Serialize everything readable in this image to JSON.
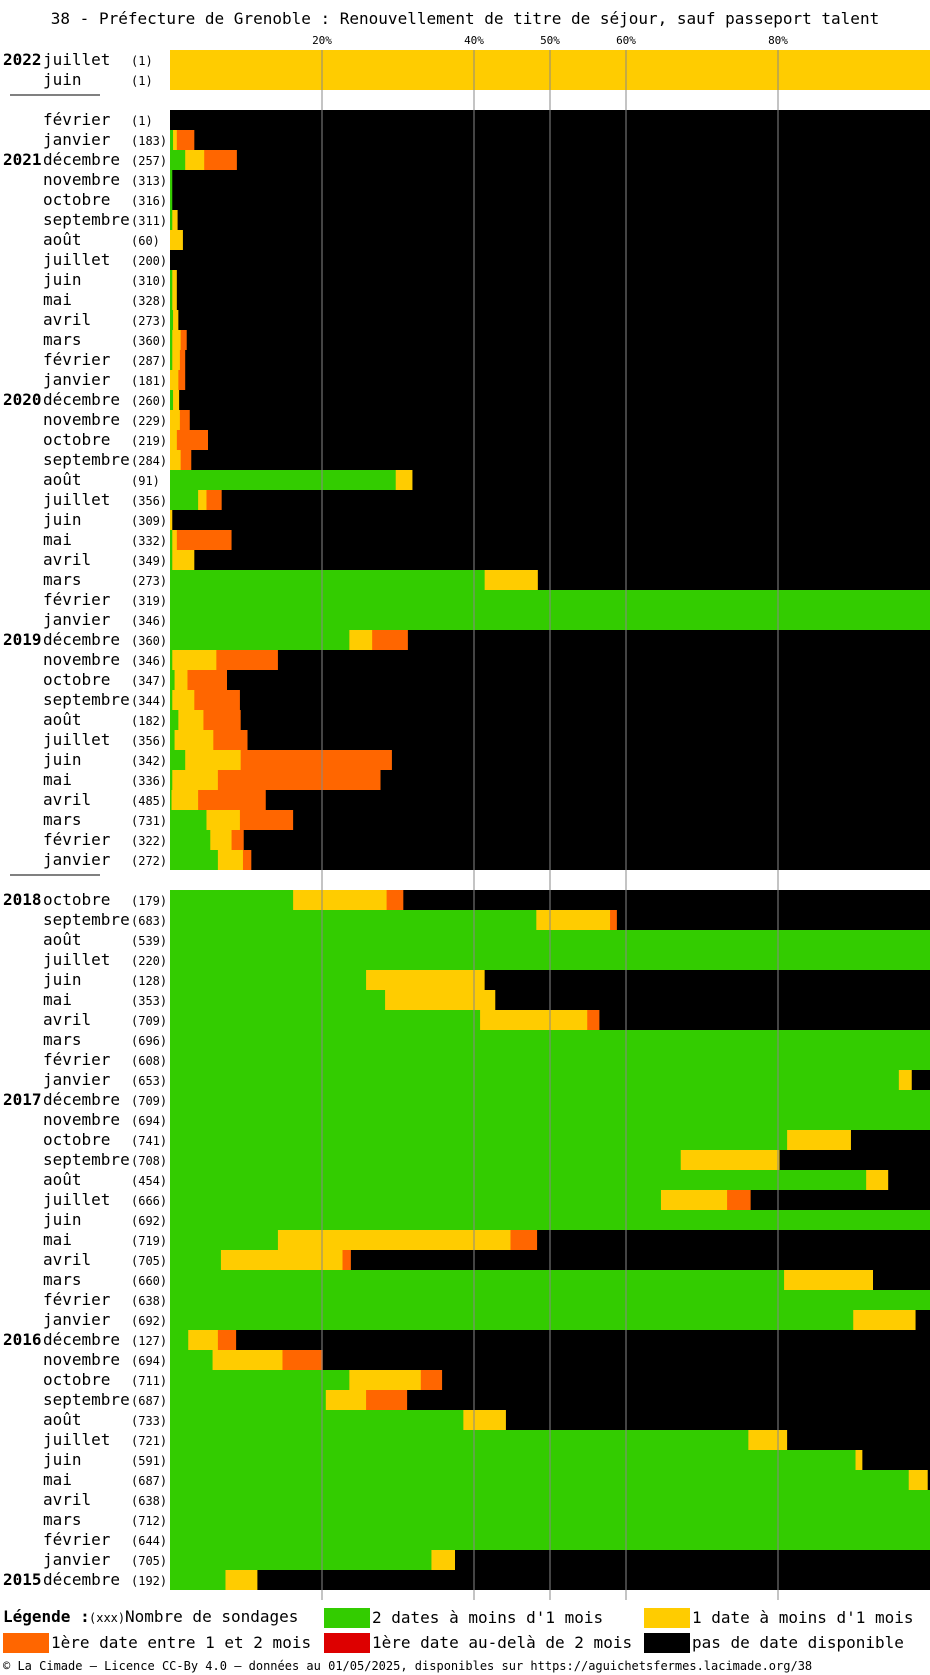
{
  "title": "38 - Préfecture de Grenoble : Renouvellement de titre de séjour, sauf passeport talent",
  "axis_ticks": [
    "20%",
    "40%",
    "50%",
    "60%",
    "80%"
  ],
  "legend": {
    "heading": "Légende :",
    "count_marker": "(xxx)",
    "count_label": "Nombre de sondages",
    "items": [
      {
        "key": "green",
        "label": "2 dates à moins d'1 mois",
        "color": "#33cc00"
      },
      {
        "key": "yellow",
        "label": "1 date à moins d'1 mois",
        "color": "#ffcc00"
      },
      {
        "key": "orange",
        "label": "1ère date entre 1 et 2 mois",
        "color": "#ff6600"
      },
      {
        "key": "red",
        "label": "1ère date au-delà de 2 mois",
        "color": "#dd0000"
      },
      {
        "key": "black",
        "label": "pas de date disponible",
        "color": "#000000"
      }
    ]
  },
  "footer": "© La Cimade — Licence CC-By 4.0 — données au 01/05/2025, disponibles sur https://aguichetsfermes.lacimade.org/38",
  "chart_data": {
    "type": "bar",
    "stacked": true,
    "orientation": "horizontal",
    "xlim": [
      0,
      100
    ],
    "x_unit": "%",
    "grid_ticks": [
      20,
      40,
      50,
      60,
      80
    ],
    "series": [
      {
        "name": "2 dates à moins d'1 mois",
        "color": "#33cc00"
      },
      {
        "name": "1 date à moins d'1 mois",
        "color": "#ffcc00"
      },
      {
        "name": "1ère date entre 1 et 2 mois",
        "color": "#ff6600"
      },
      {
        "name": "1ère date au-delà de 2 mois",
        "color": "#dd0000"
      },
      {
        "name": "pas de date disponible",
        "color": "#000000"
      }
    ],
    "groups": [
      {
        "rows": [
          {
            "year": "2022",
            "month": "juillet",
            "count": "(1)",
            "values": [
              0,
              100,
              0,
              0,
              0
            ]
          },
          {
            "year": "",
            "month": "juin",
            "count": "(1)",
            "values": [
              0,
              100,
              0,
              0,
              0
            ]
          }
        ]
      },
      {
        "rows": [
          {
            "year": "",
            "month": "février",
            "count": "(1)",
            "values": [
              0,
              0,
              0,
              0,
              100
            ]
          },
          {
            "year": "",
            "month": "janvier",
            "count": "(183)",
            "values": [
              0.4,
              0.5,
              2.3,
              0,
              96.8
            ]
          },
          {
            "year": "2021",
            "month": "décembre",
            "count": "(257)",
            "values": [
              2,
              2.5,
              4.3,
              0,
              91.2
            ]
          },
          {
            "year": "",
            "month": "novembre",
            "count": "(313)",
            "values": [
              0.3,
              0,
              0,
              0,
              99.7
            ]
          },
          {
            "year": "",
            "month": "octobre",
            "count": "(316)",
            "values": [
              0.3,
              0,
              0,
              0,
              99.7
            ]
          },
          {
            "year": "",
            "month": "septembre",
            "count": "(311)",
            "values": [
              0.3,
              0.7,
              0,
              0,
              99
            ]
          },
          {
            "year": "",
            "month": "août",
            "count": "(60)",
            "values": [
              0,
              1.7,
              0,
              0,
              98.3
            ]
          },
          {
            "year": "",
            "month": "juillet",
            "count": "(200)",
            "values": [
              0,
              0,
              0,
              0,
              100
            ]
          },
          {
            "year": "",
            "month": "juin",
            "count": "(310)",
            "values": [
              0.3,
              0.6,
              0,
              0,
              99.1
            ]
          },
          {
            "year": "",
            "month": "mai",
            "count": "(328)",
            "values": [
              0.3,
              0.6,
              0,
              0,
              99.1
            ]
          },
          {
            "year": "",
            "month": "avril",
            "count": "(273)",
            "values": [
              0.4,
              0.7,
              0,
              0,
              98.9
            ]
          },
          {
            "year": "",
            "month": "mars",
            "count": "(360)",
            "values": [
              0.3,
              1.1,
              0.8,
              0,
              97.8
            ]
          },
          {
            "year": "",
            "month": "février",
            "count": "(287)",
            "values": [
              0.3,
              1,
              0.7,
              0,
              98
            ]
          },
          {
            "year": "",
            "month": "janvier",
            "count": "(181)",
            "values": [
              0,
              1.1,
              0.9,
              0,
              98
            ]
          },
          {
            "year": "2020",
            "month": "décembre",
            "count": "(260)",
            "values": [
              0.4,
              0.8,
              0,
              0,
              98.8
            ]
          },
          {
            "year": "",
            "month": "novembre",
            "count": "(229)",
            "values": [
              0,
              1.3,
              1.3,
              0,
              97.4
            ]
          },
          {
            "year": "",
            "month": "octobre",
            "count": "(219)",
            "values": [
              0,
              0.9,
              4.1,
              0,
              95
            ]
          },
          {
            "year": "",
            "month": "septembre",
            "count": "(284)",
            "values": [
              0,
              1.4,
              1.4,
              0,
              97.2
            ]
          },
          {
            "year": "",
            "month": "août",
            "count": "(91)",
            "values": [
              29.7,
              2.2,
              0,
              0,
              68.1
            ]
          },
          {
            "year": "",
            "month": "juillet",
            "count": "(356)",
            "values": [
              3.7,
              1.1,
              2,
              0,
              93.2
            ]
          },
          {
            "year": "",
            "month": "juin",
            "count": "(309)",
            "values": [
              0,
              0.3,
              0,
              0,
              99.7
            ]
          },
          {
            "year": "",
            "month": "mai",
            "count": "(332)",
            "values": [
              0.3,
              0.6,
              7.2,
              0,
              91.9
            ]
          },
          {
            "year": "",
            "month": "avril",
            "count": "(349)",
            "values": [
              0.3,
              2.9,
              0,
              0,
              96.8
            ]
          },
          {
            "year": "",
            "month": "mars",
            "count": "(273)",
            "values": [
              41.4,
              7,
              0,
              0,
              51.6
            ]
          },
          {
            "year": "",
            "month": "février",
            "count": "(319)",
            "values": [
              100,
              0,
              0,
              0,
              0
            ]
          },
          {
            "year": "",
            "month": "janvier",
            "count": "(346)",
            "values": [
              100,
              0,
              0,
              0,
              0
            ]
          },
          {
            "year": "2019",
            "month": "décembre",
            "count": "(360)",
            "values": [
              23.6,
              3,
              4.7,
              0,
              68.7
            ]
          },
          {
            "year": "",
            "month": "novembre",
            "count": "(346)",
            "values": [
              0.3,
              5.8,
              8.1,
              0,
              85.8
            ]
          },
          {
            "year": "",
            "month": "octobre",
            "count": "(347)",
            "values": [
              0.6,
              1.7,
              5.2,
              0,
              92.5
            ]
          },
          {
            "year": "",
            "month": "septembre",
            "count": "(344)",
            "values": [
              0.3,
              2.9,
              6,
              0,
              90.8
            ]
          },
          {
            "year": "",
            "month": "août",
            "count": "(182)",
            "values": [
              1.1,
              3.3,
              4.9,
              0,
              90.7
            ]
          },
          {
            "year": "",
            "month": "juillet",
            "count": "(356)",
            "values": [
              0.6,
              5.1,
              4.5,
              0,
              89.8
            ]
          },
          {
            "year": "",
            "month": "juin",
            "count": "(342)",
            "values": [
              2,
              7.3,
              19.9,
              0,
              70.8
            ]
          },
          {
            "year": "",
            "month": "mai",
            "count": "(336)",
            "values": [
              0.3,
              6,
              21.4,
              0,
              72.3
            ]
          },
          {
            "year": "",
            "month": "avril",
            "count": "(485)",
            "values": [
              0.2,
              3.5,
              8.9,
              0,
              87.4
            ]
          },
          {
            "year": "",
            "month": "mars",
            "count": "(731)",
            "values": [
              4.8,
              4.4,
              7,
              0,
              83.8
            ]
          },
          {
            "year": "",
            "month": "février",
            "count": "(322)",
            "values": [
              5.3,
              2.8,
              1.6,
              0,
              90.3
            ]
          },
          {
            "year": "",
            "month": "janvier",
            "count": "(272)",
            "values": [
              6.3,
              3.3,
              1.1,
              0,
              89.3
            ]
          }
        ]
      },
      {
        "rows": [
          {
            "year": "2018",
            "month": "octobre",
            "count": "(179)",
            "values": [
              16.2,
              12.3,
              2.2,
              0,
              69.3
            ]
          },
          {
            "year": "",
            "month": "septembre",
            "count": "(683)",
            "values": [
              48.2,
              9.7,
              0.9,
              0,
              41.2
            ]
          },
          {
            "year": "",
            "month": "août",
            "count": "(539)",
            "values": [
              100,
              0,
              0,
              0,
              0
            ]
          },
          {
            "year": "",
            "month": "juillet",
            "count": "(220)",
            "values": [
              100,
              0,
              0,
              0,
              0
            ]
          },
          {
            "year": "",
            "month": "juin",
            "count": "(128)",
            "values": [
              25.8,
              15.6,
              0,
              0,
              58.6
            ]
          },
          {
            "year": "",
            "month": "mai",
            "count": "(353)",
            "values": [
              28.3,
              14.5,
              0,
              0,
              57.2
            ]
          },
          {
            "year": "",
            "month": "avril",
            "count": "(709)",
            "values": [
              40.8,
              14.1,
              1.6,
              0,
              43.5
            ]
          },
          {
            "year": "",
            "month": "mars",
            "count": "(696)",
            "values": [
              100,
              0,
              0,
              0,
              0
            ]
          },
          {
            "year": "",
            "month": "février",
            "count": "(608)",
            "values": [
              100,
              0,
              0,
              0,
              0
            ]
          },
          {
            "year": "",
            "month": "janvier",
            "count": "(653)",
            "values": [
              95.9,
              1.7,
              0,
              0,
              2.4
            ]
          },
          {
            "year": "2017",
            "month": "décembre",
            "count": "(709)",
            "values": [
              100,
              0,
              0,
              0,
              0
            ]
          },
          {
            "year": "",
            "month": "novembre",
            "count": "(694)",
            "values": [
              100,
              0,
              0,
              0,
              0
            ]
          },
          {
            "year": "",
            "month": "octobre",
            "count": "(741)",
            "values": [
              81.2,
              8.4,
              0,
              0,
              10.4
            ]
          },
          {
            "year": "",
            "month": "septembre",
            "count": "(708)",
            "values": [
              67.2,
              13,
              0,
              0,
              19.8
            ]
          },
          {
            "year": "",
            "month": "août",
            "count": "(454)",
            "values": [
              91.6,
              2.9,
              0,
              0,
              5.5
            ]
          },
          {
            "year": "",
            "month": "juillet",
            "count": "(666)",
            "values": [
              64.6,
              8.7,
              3.1,
              0,
              23.6
            ]
          },
          {
            "year": "",
            "month": "juin",
            "count": "(692)",
            "values": [
              100,
              0,
              0,
              0,
              0
            ]
          },
          {
            "year": "",
            "month": "mai",
            "count": "(719)",
            "values": [
              14.2,
              30.6,
              3.5,
              0,
              51.7
            ]
          },
          {
            "year": "",
            "month": "avril",
            "count": "(705)",
            "values": [
              6.7,
              16,
              1.1,
              0,
              76.2
            ]
          },
          {
            "year": "",
            "month": "mars",
            "count": "(660)",
            "values": [
              80.8,
              11.7,
              0,
              0,
              7.5
            ]
          },
          {
            "year": "",
            "month": "février",
            "count": "(638)",
            "values": [
              100,
              0,
              0,
              0,
              0
            ]
          },
          {
            "year": "",
            "month": "janvier",
            "count": "(692)",
            "values": [
              89.9,
              8.2,
              0,
              0,
              1.9
            ]
          },
          {
            "year": "2016",
            "month": "décembre",
            "count": "(127)",
            "values": [
              2.4,
              3.9,
              2.4,
              0,
              91.3
            ]
          },
          {
            "year": "",
            "month": "novembre",
            "count": "(694)",
            "values": [
              5.6,
              9.2,
              5.3,
              0,
              79.9
            ]
          },
          {
            "year": "",
            "month": "octobre",
            "count": "(711)",
            "values": [
              23.6,
              9.4,
              2.8,
              0,
              64.2
            ]
          },
          {
            "year": "",
            "month": "septembre",
            "count": "(687)",
            "values": [
              20.5,
              5.3,
              5.4,
              0,
              68.8
            ]
          },
          {
            "year": "",
            "month": "août",
            "count": "(733)",
            "values": [
              38.6,
              5.6,
              0,
              0,
              55.8
            ]
          },
          {
            "year": "",
            "month": "juillet",
            "count": "(721)",
            "values": [
              76.1,
              5.1,
              0,
              0,
              18.8
            ]
          },
          {
            "year": "",
            "month": "juin",
            "count": "(591)",
            "values": [
              90.2,
              0.9,
              0,
              0,
              8.9
            ]
          },
          {
            "year": "",
            "month": "mai",
            "count": "(687)",
            "values": [
              97.2,
              2.5,
              0,
              0,
              0.3
            ]
          },
          {
            "year": "",
            "month": "avril",
            "count": "(638)",
            "values": [
              100,
              0,
              0,
              0,
              0
            ]
          },
          {
            "year": "",
            "month": "mars",
            "count": "(712)",
            "values": [
              100,
              0,
              0,
              0,
              0
            ]
          },
          {
            "year": "",
            "month": "février",
            "count": "(644)",
            "values": [
              100,
              0,
              0,
              0,
              0
            ]
          },
          {
            "year": "",
            "month": "janvier",
            "count": "(705)",
            "values": [
              34.4,
              3.1,
              0,
              0,
              62.5
            ]
          },
          {
            "year": "2015",
            "month": "décembre",
            "count": "(192)",
            "values": [
              7.3,
              4.2,
              0,
              0,
              88.5
            ]
          }
        ]
      }
    ]
  }
}
